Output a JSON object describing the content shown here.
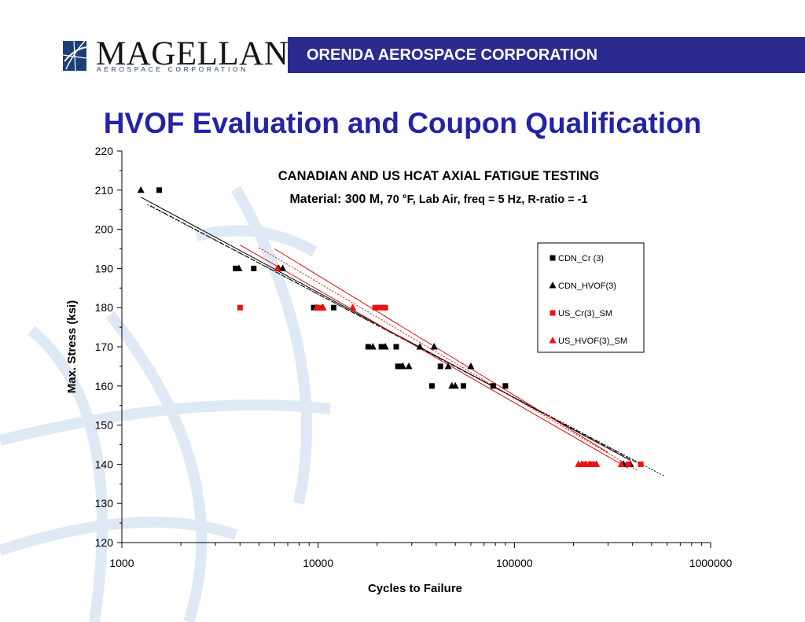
{
  "header": {
    "logo_name": "MAGELLAN",
    "logo_subtitle": "AEROSPACE CORPORATION",
    "company_bar": "ORENDA AEROSPACE CORPORATION"
  },
  "slide": {
    "title": "HVOF Evaluation and Coupon Qualification"
  },
  "chart_data": {
    "type": "scatter",
    "title": "CANADIAN AND US HCAT AXIAL FATIGUE TESTING",
    "subtitle_main": "Material: 300 M,",
    "subtitle_rest": " 70 °F, Lab Air, freq = 5 Hz, R-ratio = -1",
    "xlabel": "Cycles to Failure",
    "ylabel": "Max. Stress (ksi)",
    "x_scale": "log",
    "xlim": [
      1000,
      1000000
    ],
    "ylim": [
      120,
      220
    ],
    "x_ticks": [
      "1000",
      "10000",
      "100000",
      "1000000"
    ],
    "y_ticks": [
      "120",
      "130",
      "140",
      "150",
      "160",
      "170",
      "180",
      "190",
      "200",
      "210",
      "220"
    ],
    "legend_position": "right",
    "grid": false,
    "series": [
      {
        "name": "CDN_Cr (3)",
        "marker": "square",
        "color": "#000000",
        "points": [
          [
            1550,
            210
          ],
          [
            3800,
            190
          ],
          [
            4700,
            190
          ],
          [
            9500,
            180
          ],
          [
            9800,
            180
          ],
          [
            12000,
            180
          ],
          [
            18000,
            170
          ],
          [
            21000,
            170
          ],
          [
            21500,
            170
          ],
          [
            25000,
            170
          ],
          [
            25500,
            165
          ],
          [
            26500,
            165
          ],
          [
            38000,
            160
          ],
          [
            42000,
            165
          ],
          [
            55000,
            160
          ],
          [
            78000,
            160
          ],
          [
            90000,
            160
          ]
        ]
      },
      {
        "name": "CDN_HVOF(3)",
        "marker": "triangle",
        "color": "#000000",
        "points": [
          [
            1250,
            210
          ],
          [
            3950,
            190
          ],
          [
            6300,
            190
          ],
          [
            6600,
            190
          ],
          [
            10500,
            180
          ],
          [
            19000,
            170
          ],
          [
            22000,
            170
          ],
          [
            27000,
            165
          ],
          [
            29000,
            165
          ],
          [
            33000,
            170
          ],
          [
            39000,
            170
          ],
          [
            46000,
            165
          ],
          [
            48000,
            160
          ],
          [
            50000,
            160
          ],
          [
            60000,
            165
          ],
          [
            360000,
            140
          ],
          [
            390000,
            140
          ]
        ]
      },
      {
        "name": "US_Cr(3)_SM",
        "marker": "square",
        "color": "#ee1111",
        "points": [
          [
            4000,
            180
          ],
          [
            10000,
            180
          ],
          [
            19500,
            180
          ],
          [
            20500,
            180
          ],
          [
            21500,
            180
          ],
          [
            22000,
            180
          ],
          [
            225000,
            140
          ],
          [
            245000,
            140
          ],
          [
            255000,
            140
          ],
          [
            380000,
            140
          ],
          [
            440000,
            140
          ]
        ]
      },
      {
        "name": "US_HVOF(3)_SM",
        "marker": "triangle",
        "color": "#ee1111",
        "points": [
          [
            6200,
            190
          ],
          [
            9800,
            180
          ],
          [
            10600,
            180
          ],
          [
            15000,
            180
          ],
          [
            212000,
            140
          ],
          [
            220000,
            140
          ],
          [
            232000,
            140
          ],
          [
            242000,
            140
          ],
          [
            262000,
            140
          ],
          [
            350000,
            140
          ]
        ]
      }
    ],
    "trendlines": [
      {
        "color": "#000000",
        "dash": "",
        "from": [
          1250,
          208.2
        ],
        "to": [
          390000,
          141
        ]
      },
      {
        "color": "#000000",
        "dash": "2,2",
        "from": [
          1350,
          206.3
        ],
        "to": [
          580000,
          137
        ]
      },
      {
        "color": "#000000",
        "dash": "6,3",
        "from": [
          1400,
          206
        ],
        "to": [
          420000,
          140.5
        ]
      },
      {
        "color": "#dd1111",
        "dash": "",
        "from": [
          4000,
          196
        ],
        "to": [
          380000,
          139
        ]
      },
      {
        "color": "#dd1111",
        "dash": "",
        "from": [
          6000,
          195
        ],
        "to": [
          300000,
          143
        ]
      },
      {
        "color": "#dd1111",
        "dash": "2,2",
        "from": [
          5000,
          195.3
        ],
        "to": [
          420000,
          138.5
        ]
      }
    ]
  }
}
